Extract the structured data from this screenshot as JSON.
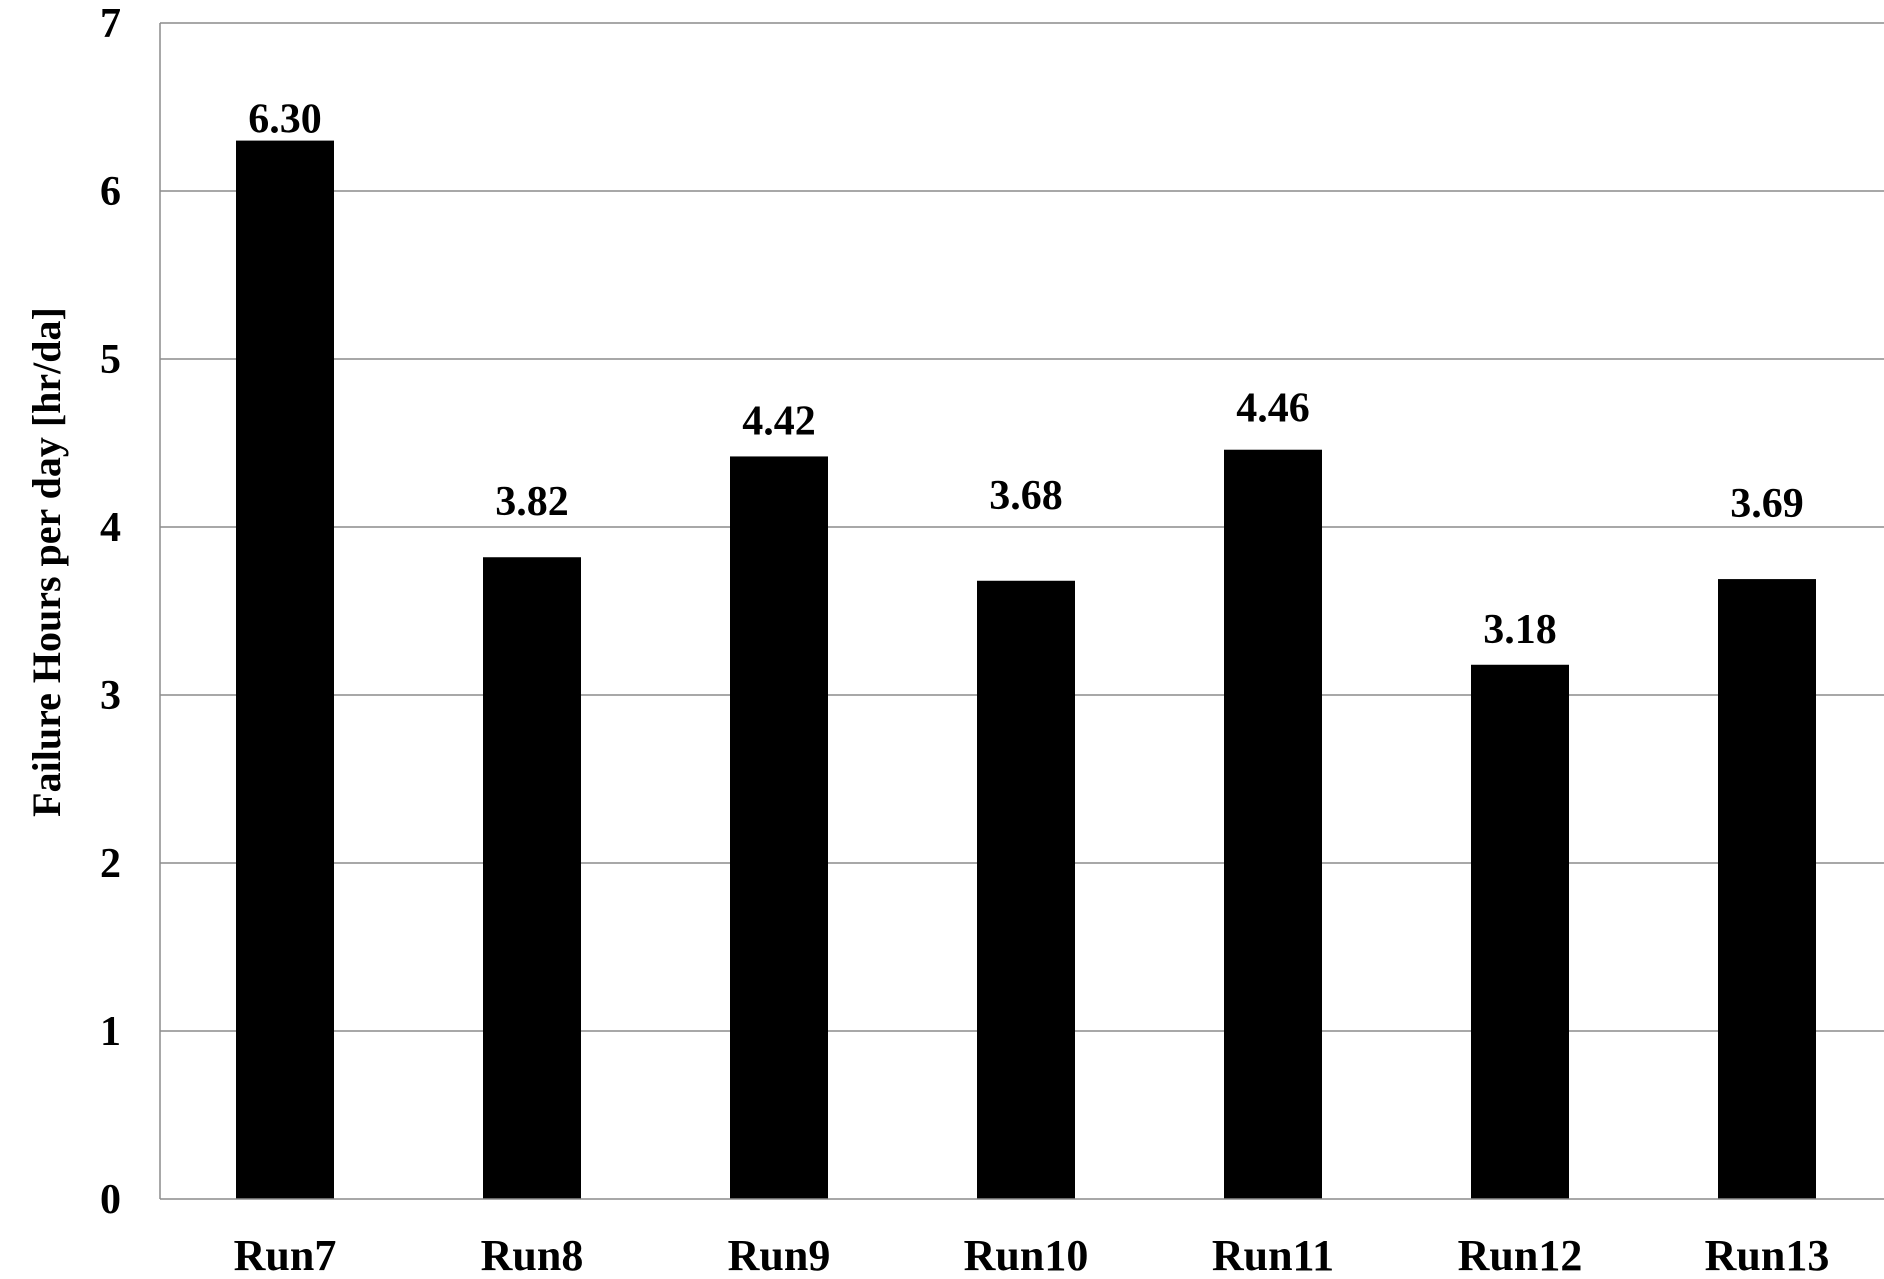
{
  "chart_data": {
    "type": "bar",
    "title": "",
    "xlabel": "",
    "ylabel": "Failure Hours per day [hr/da]",
    "categories": [
      "Run7",
      "Run8",
      "Run9",
      "Run10",
      "Run11",
      "Run12",
      "Run13"
    ],
    "values": [
      6.3,
      3.82,
      4.42,
      3.68,
      4.46,
      3.18,
      3.69
    ],
    "data_labels": [
      "6.30",
      "3.82",
      "4.42",
      "3.68",
      "4.46",
      "3.18",
      "3.69"
    ],
    "ylim": [
      0,
      7
    ],
    "yticks": [
      0,
      1,
      2,
      3,
      4,
      5,
      6,
      7
    ],
    "grid": true,
    "legend": "none",
    "colors": {
      "bar": "#000000",
      "grid": "#8c8c8c",
      "axis": "#8c8c8c",
      "text": "#000000"
    }
  }
}
